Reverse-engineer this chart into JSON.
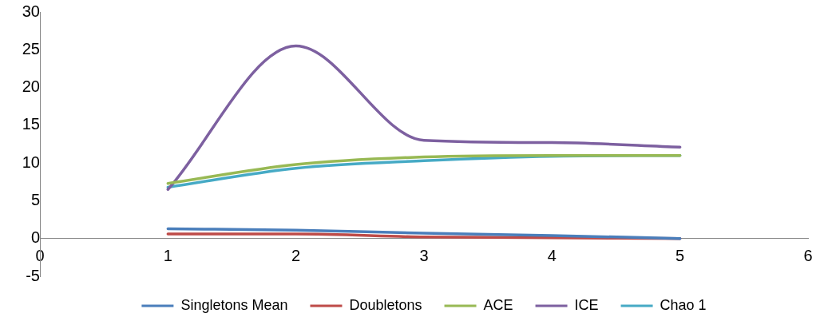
{
  "chart_data": {
    "type": "line",
    "x": [
      1,
      2,
      3,
      4,
      5
    ],
    "xlim": [
      0,
      6
    ],
    "xticks": [
      0,
      1,
      2,
      3,
      4,
      5,
      6
    ],
    "ylim": [
      -5,
      30
    ],
    "yticks": [
      -5,
      0,
      5,
      10,
      15,
      20,
      25,
      30
    ],
    "grid": false,
    "legend": "bottom",
    "marker": "none",
    "line_style": "solid",
    "series": [
      {
        "name": "Singletons Mean",
        "color": "#4a7ebb",
        "values": [
          1.3,
          1.1,
          0.7,
          0.4,
          0
        ]
      },
      {
        "name": "Doubletons",
        "color": "#be4b48",
        "values": [
          0.6,
          0.6,
          0.2,
          0.1,
          0
        ]
      },
      {
        "name": "ACE",
        "color": "#98b954",
        "values": [
          7.3,
          9.8,
          10.8,
          11.0,
          11.0
        ]
      },
      {
        "name": "ICE",
        "color": "#7d60a0",
        "values": [
          6.5,
          25.5,
          13,
          12.7,
          12.1
        ]
      },
      {
        "name": "Chao 1",
        "color": "#46aac5",
        "values": [
          6.8,
          9.3,
          10.3,
          10.9,
          11.0
        ]
      }
    ]
  }
}
